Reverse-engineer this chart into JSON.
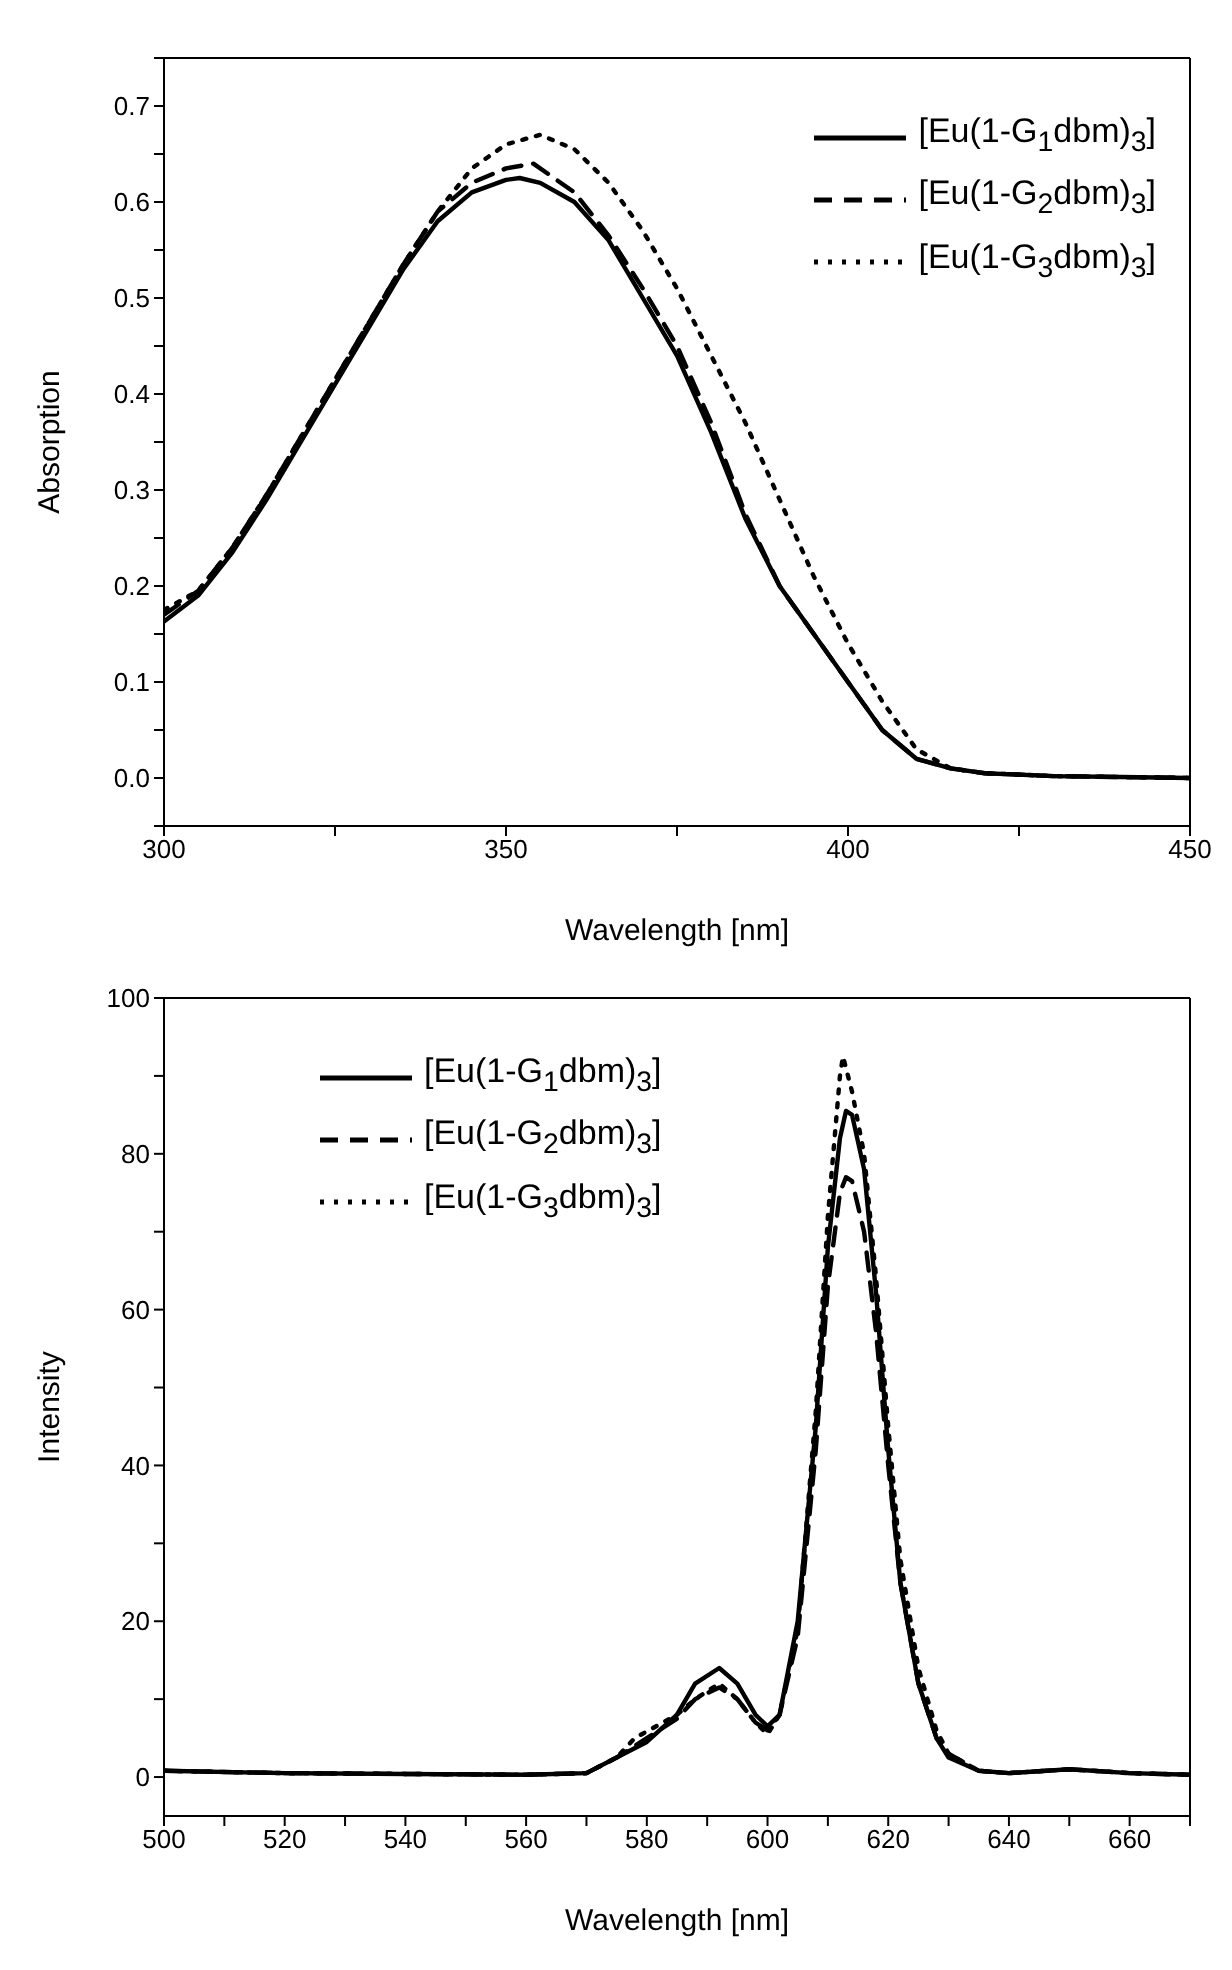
{
  "chart_data": [
    {
      "type": "line",
      "xlabel": "Wavelength [nm]",
      "ylabel": "Absorption",
      "xlim": [
        300,
        450
      ],
      "ylim": [
        -0.05,
        0.75
      ],
      "xticks": [
        300,
        {
          "value": 325,
          "label": null
        },
        350,
        {
          "value": 375,
          "label": null
        },
        400,
        {
          "value": 425,
          "label": null
        },
        450
      ],
      "yticks": [
        {
          "value": -0.05,
          "label": null
        },
        {
          "value": 0,
          "label": "0.0"
        },
        {
          "value": 0.05,
          "label": null
        },
        0.1,
        {
          "value": 0.15,
          "label": null
        },
        0.2,
        {
          "value": 0.25,
          "label": null
        },
        0.3,
        {
          "value": 0.35,
          "label": null
        },
        0.4,
        {
          "value": 0.45,
          "label": null
        },
        0.5,
        {
          "value": 0.55,
          "label": null
        },
        0.6,
        {
          "value": 0.65,
          "label": null
        },
        0.7,
        {
          "value": 0.75,
          "label": null
        }
      ],
      "legend": "top right",
      "marker": "none",
      "series": [
        {
          "name": "[Eu(1-G$_{1}$dbm)$_{3}$]",
          "color": "#000000",
          "line_style": "solid",
          "x": [
            300,
            305,
            310,
            315,
            320,
            325,
            330,
            335,
            340,
            345,
            350,
            352,
            355,
            360,
            365,
            370,
            375,
            380,
            385,
            390,
            395,
            400,
            405,
            410,
            415,
            420,
            430,
            440,
            450
          ],
          "values": [
            0.163,
            0.19,
            0.235,
            0.29,
            0.35,
            0.41,
            0.47,
            0.53,
            0.58,
            0.61,
            0.623,
            0.625,
            0.62,
            0.6,
            0.56,
            0.5,
            0.44,
            0.36,
            0.27,
            0.2,
            0.15,
            0.1,
            0.05,
            0.02,
            0.01,
            0.005,
            0.002,
            0.001,
            0
          ]
        },
        {
          "name": "[Eu(1-G$_{2}$dbm)$_{3}$]",
          "color": "#000000",
          "line_style": "dashed",
          "x": [
            300,
            305,
            310,
            315,
            320,
            325,
            330,
            335,
            340,
            345,
            350,
            354,
            360,
            365,
            370,
            375,
            380,
            385,
            390,
            395,
            400,
            405,
            410,
            415,
            420,
            430,
            440,
            450
          ],
          "values": [
            0.17,
            0.195,
            0.24,
            0.295,
            0.355,
            0.415,
            0.475,
            0.535,
            0.59,
            0.62,
            0.635,
            0.64,
            0.61,
            0.565,
            0.51,
            0.45,
            0.37,
            0.275,
            0.2,
            0.15,
            0.1,
            0.05,
            0.02,
            0.01,
            0.005,
            0.002,
            0.001,
            0
          ]
        },
        {
          "name": "[Eu(1-G$_{3}$dbm)$_{3}$]",
          "color": "#000000",
          "line_style": "dotted",
          "x": [
            300,
            305,
            310,
            315,
            320,
            325,
            330,
            335,
            340,
            345,
            350,
            355,
            360,
            365,
            370,
            375,
            380,
            385,
            390,
            395,
            400,
            405,
            410,
            415,
            420,
            430,
            440,
            450
          ],
          "values": [
            0.175,
            0.195,
            0.24,
            0.295,
            0.355,
            0.415,
            0.475,
            0.535,
            0.59,
            0.635,
            0.66,
            0.67,
            0.655,
            0.62,
            0.57,
            0.51,
            0.44,
            0.37,
            0.29,
            0.21,
            0.14,
            0.08,
            0.03,
            0.01,
            0.005,
            0.002,
            0.001,
            0
          ]
        }
      ]
    },
    {
      "type": "line",
      "xlabel": "Wavelength [nm]",
      "ylabel": "Intensity",
      "xlim": [
        500,
        670
      ],
      "ylim": [
        -5,
        100
      ],
      "xticks": [
        500,
        {
          "value": 510,
          "label": null
        },
        520,
        {
          "value": 530,
          "label": null
        },
        540,
        {
          "value": 550,
          "label": null
        },
        560,
        {
          "value": 570,
          "label": null
        },
        580,
        {
          "value": 590,
          "label": null
        },
        600,
        {
          "value": 610,
          "label": null
        },
        620,
        {
          "value": 630,
          "label": null
        },
        640,
        {
          "value": 650,
          "label": null
        },
        660,
        {
          "value": 670,
          "label": null
        }
      ],
      "yticks": [
        0,
        {
          "value": 10,
          "label": null
        },
        20,
        {
          "value": 30,
          "label": null
        },
        40,
        {
          "value": 50,
          "label": null
        },
        60,
        {
          "value": 70,
          "label": null
        },
        80,
        {
          "value": 90,
          "label": null
        },
        100
      ],
      "legend": "top left",
      "marker": "none",
      "series": [
        {
          "name": "[Eu(1-G$_{1}$dbm)$_{3}$]",
          "color": "#000000",
          "line_style": "solid",
          "x": [
            500,
            520,
            540,
            560,
            570,
            575,
            580,
            585,
            588,
            592,
            595,
            598,
            600,
            602,
            605,
            608,
            610,
            612,
            613,
            614,
            616,
            618,
            620,
            622,
            625,
            628,
            630,
            635,
            640,
            650,
            660,
            670
          ],
          "values": [
            0.8,
            0.5,
            0.4,
            0.3,
            0.5,
            2.5,
            4.5,
            8,
            12,
            14,
            12,
            8,
            6.5,
            8,
            20,
            45,
            68,
            82,
            85.5,
            85,
            78,
            62,
            42,
            25,
            12,
            5,
            2.5,
            0.8,
            0.5,
            1,
            0.5,
            0.3
          ]
        },
        {
          "name": "[Eu(1-G$_{2}$dbm)$_{3}$]",
          "color": "#000000",
          "line_style": "dashed",
          "x": [
            500,
            520,
            540,
            560,
            570,
            575,
            580,
            585,
            588,
            592,
            595,
            598,
            600,
            602,
            605,
            608,
            610,
            612,
            613,
            614,
            616,
            618,
            620,
            622,
            625,
            628,
            630,
            635,
            640,
            650,
            660,
            670
          ],
          "values": [
            0.8,
            0.5,
            0.4,
            0.3,
            0.5,
            2.5,
            5,
            7.5,
            10,
            11.5,
            10,
            7,
            6,
            8,
            18,
            42,
            63,
            75,
            77,
            76.5,
            70,
            57,
            40,
            25,
            12,
            5,
            3,
            0.8,
            0.5,
            1,
            0.5,
            0.3
          ]
        },
        {
          "name": "[Eu(1-G$_{3}$dbm)$_{3}$]",
          "color": "#000000",
          "line_style": "dotted",
          "x": [
            500,
            520,
            540,
            560,
            570,
            575,
            578,
            585,
            588,
            592,
            595,
            598,
            600,
            602,
            605,
            608,
            610,
            612,
            612.5,
            614,
            616,
            618,
            620,
            622,
            625,
            628,
            630,
            635,
            640,
            650,
            660,
            670
          ],
          "values": [
            0.8,
            0.5,
            0.4,
            0.3,
            0.5,
            2.5,
            5,
            8,
            10,
            12,
            10,
            7,
            5.5,
            8,
            19,
            47,
            72,
            90,
            92.5,
            88,
            80,
            64,
            45,
            28,
            14,
            6,
            3,
            0.8,
            0.5,
            1,
            0.5,
            0.3
          ]
        }
      ]
    }
  ]
}
